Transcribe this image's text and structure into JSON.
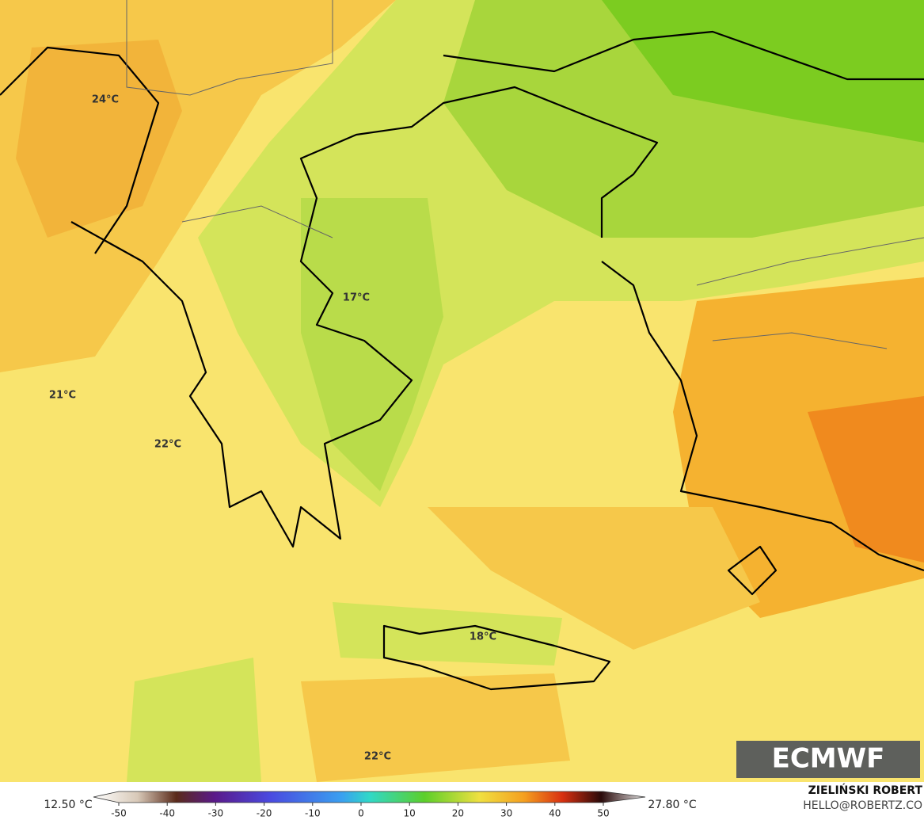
{
  "labels": [
    {
      "text": "24°C"
    },
    {
      "text": "17°C"
    },
    {
      "text": "21°C"
    },
    {
      "text": "22°C"
    },
    {
      "text": "18°C"
    },
    {
      "text": "22°C"
    }
  ],
  "colorbar": {
    "min_label": "12.50 °C",
    "max_label": "27.80 °C",
    "ticks": [
      -50,
      -40,
      -30,
      -20,
      -10,
      0,
      10,
      20,
      30,
      40,
      50
    ]
  },
  "logo": "ECMWF",
  "author": "ZIELIŃSKI ROBERT",
  "email": "HELLO@ROBERTZ.CO"
}
